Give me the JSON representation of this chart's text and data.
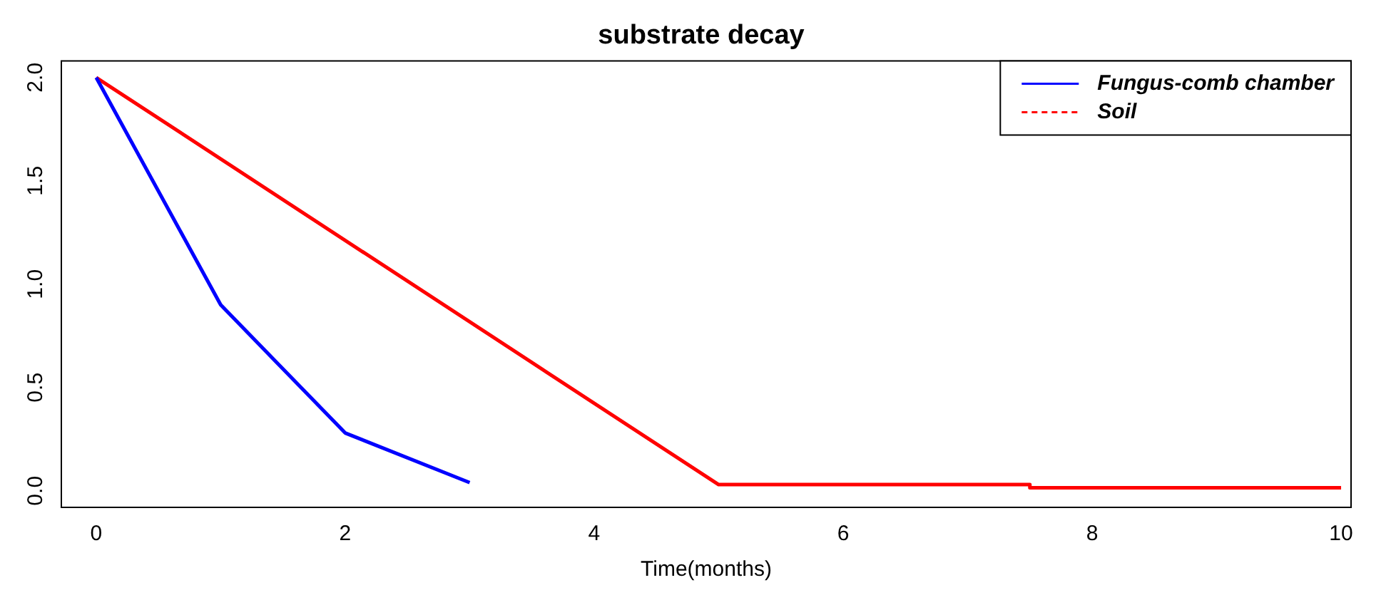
{
  "chart_data": {
    "type": "line",
    "title": "substrate decay",
    "xlabel": "Time(months)",
    "xlim": [
      -0.28,
      10.08
    ],
    "xticks": [
      0,
      2,
      4,
      6,
      8,
      10
    ],
    "ylim": [
      -0.08,
      2.08
    ],
    "yticks": [
      {
        "value": 0,
        "label": "0.0"
      },
      0.5,
      {
        "value": 1,
        "label": "1.0"
      },
      1.5,
      {
        "value": 2,
        "label": "2.0"
      }
    ],
    "grid": false,
    "legend": "top right",
    "marker": "none",
    "series": [
      {
        "name": "Fungus-comb chamber",
        "color": "#0000ff",
        "x": [
          0,
          1,
          2,
          3
        ],
        "values": [
          2.0,
          0.9,
          0.28,
          0.04
        ]
      },
      {
        "name": "Soil",
        "color": "#ff0000",
        "x": [
          0,
          5,
          7.5,
          7.5,
          10
        ],
        "values": [
          2.0,
          0.03,
          0.03,
          0.015,
          0.015
        ]
      }
    ]
  }
}
